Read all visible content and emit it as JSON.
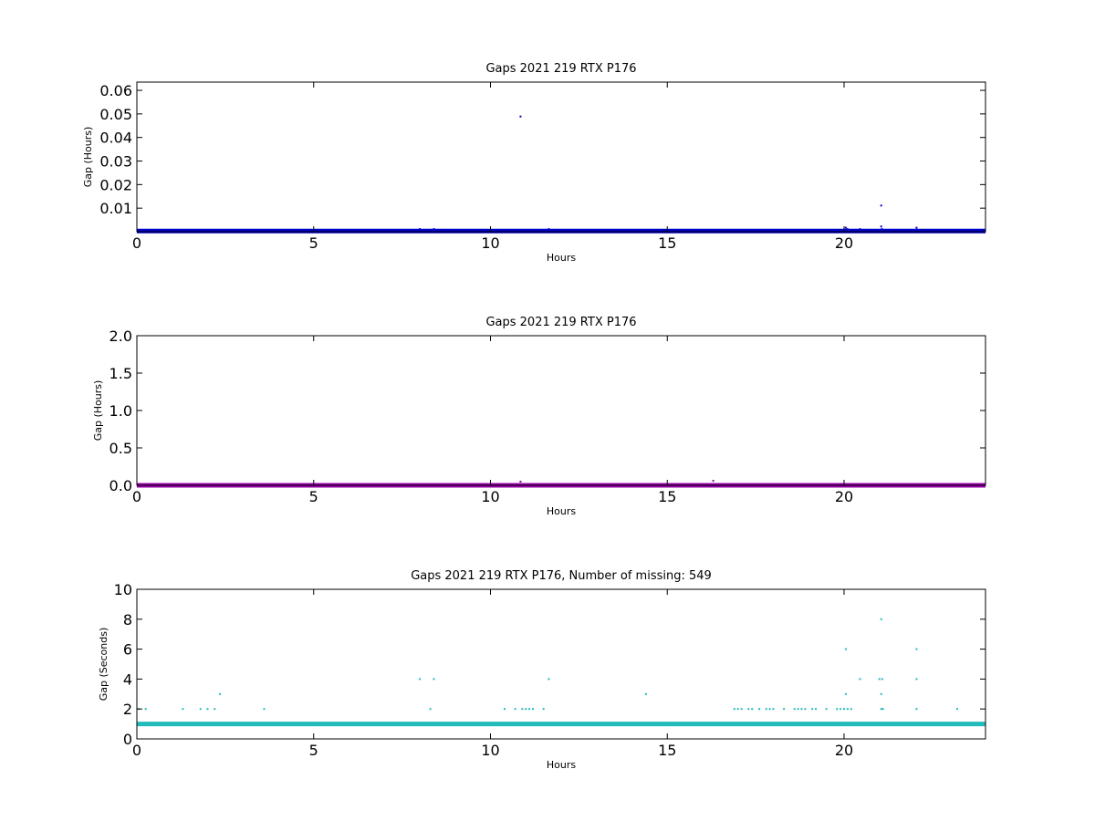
{
  "chart_data": [
    {
      "type": "scatter",
      "title": "Gaps 2021 219 RTX  P176",
      "xlabel": "Hours",
      "ylabel": "Gap (Hours)",
      "xlim": [
        0,
        24
      ],
      "ylim": [
        0,
        0.0635
      ],
      "xticks": [
        0,
        5,
        10,
        15,
        20
      ],
      "yticks": [
        0.01,
        0.02,
        0.03,
        0.04,
        0.05,
        0.06
      ],
      "ytick_labels": [
        "0.01",
        "0.02",
        "0.03",
        "0.04",
        "0.05",
        "0.06"
      ],
      "grid": false,
      "color": "#0000cc",
      "baseline": {
        "y": 0.00028,
        "x_start": 0,
        "x_end": 24
      },
      "points": [
        {
          "x": 8.0,
          "y": 0.0011
        },
        {
          "x": 8.4,
          "y": 0.0011
        },
        {
          "x": 10.85,
          "y": 0.0489
        },
        {
          "x": 11.65,
          "y": 0.0011
        },
        {
          "x": 20.05,
          "y": 0.0017
        },
        {
          "x": 20.1,
          "y": 0.0011
        },
        {
          "x": 20.45,
          "y": 0.0011
        },
        {
          "x": 21.05,
          "y": 0.0111
        },
        {
          "x": 21.05,
          "y": 0.0022
        },
        {
          "x": 21.07,
          "y": 0.0011
        },
        {
          "x": 22.05,
          "y": 0.0017
        }
      ]
    },
    {
      "type": "scatter",
      "title": "Gaps 2021 219 RTX  P176",
      "xlabel": "Hours",
      "ylabel": "Gap (Hours)",
      "xlim": [
        0,
        24
      ],
      "ylim": [
        0,
        2.0
      ],
      "xticks": [
        0,
        5,
        10,
        15,
        20
      ],
      "yticks": [
        0.0,
        0.5,
        1.0,
        1.5,
        2.0
      ],
      "ytick_labels": [
        "0.0",
        "0.5",
        "1.0",
        "1.5",
        "2.0"
      ],
      "grid": false,
      "color": "#9900aa",
      "baseline": {
        "y": 0.00028,
        "x_start": 0,
        "x_end": 24
      },
      "points": [
        {
          "x": 10.85,
          "y": 0.049
        },
        {
          "x": 16.3,
          "y": 0.06
        }
      ]
    },
    {
      "type": "scatter",
      "title": "Gaps 2021 219 RTX  P176, Number of missing: 549",
      "xlabel": "Hours",
      "ylabel": "Gap (Seconds)",
      "xlim": [
        0,
        24
      ],
      "ylim": [
        0,
        10
      ],
      "xticks": [
        0,
        5,
        10,
        15,
        20
      ],
      "yticks": [
        0,
        2,
        4,
        6,
        8,
        10
      ],
      "ytick_labels": [
        "0",
        "2",
        "4",
        "6",
        "8",
        "10"
      ],
      "grid": false,
      "color": "#22bbbb",
      "baseline": {
        "y": 1,
        "x_start": 0,
        "x_end": 24
      },
      "points": [
        {
          "x": 0.05,
          "y": 2
        },
        {
          "x": 0.25,
          "y": 2
        },
        {
          "x": 1.3,
          "y": 2
        },
        {
          "x": 1.8,
          "y": 2
        },
        {
          "x": 2.0,
          "y": 2
        },
        {
          "x": 2.2,
          "y": 2
        },
        {
          "x": 2.35,
          "y": 3
        },
        {
          "x": 3.6,
          "y": 2
        },
        {
          "x": 8.0,
          "y": 4
        },
        {
          "x": 8.3,
          "y": 2
        },
        {
          "x": 8.4,
          "y": 4
        },
        {
          "x": 10.4,
          "y": 2
        },
        {
          "x": 10.7,
          "y": 2
        },
        {
          "x": 10.9,
          "y": 2
        },
        {
          "x": 11.0,
          "y": 2
        },
        {
          "x": 11.1,
          "y": 2
        },
        {
          "x": 11.2,
          "y": 2
        },
        {
          "x": 11.5,
          "y": 2
        },
        {
          "x": 11.65,
          "y": 4
        },
        {
          "x": 14.4,
          "y": 3
        },
        {
          "x": 16.9,
          "y": 2
        },
        {
          "x": 17.0,
          "y": 2
        },
        {
          "x": 17.1,
          "y": 2
        },
        {
          "x": 17.3,
          "y": 2
        },
        {
          "x": 17.4,
          "y": 2
        },
        {
          "x": 17.6,
          "y": 2
        },
        {
          "x": 17.8,
          "y": 2
        },
        {
          "x": 17.9,
          "y": 2
        },
        {
          "x": 18.0,
          "y": 2
        },
        {
          "x": 18.3,
          "y": 2
        },
        {
          "x": 18.6,
          "y": 2
        },
        {
          "x": 18.7,
          "y": 2
        },
        {
          "x": 18.8,
          "y": 2
        },
        {
          "x": 18.9,
          "y": 2
        },
        {
          "x": 19.1,
          "y": 2
        },
        {
          "x": 19.2,
          "y": 2
        },
        {
          "x": 19.5,
          "y": 2
        },
        {
          "x": 19.8,
          "y": 2
        },
        {
          "x": 19.9,
          "y": 2
        },
        {
          "x": 20.0,
          "y": 2
        },
        {
          "x": 20.05,
          "y": 3
        },
        {
          "x": 20.05,
          "y": 6
        },
        {
          "x": 20.1,
          "y": 2
        },
        {
          "x": 20.2,
          "y": 2
        },
        {
          "x": 20.45,
          "y": 4
        },
        {
          "x": 21.0,
          "y": 4
        },
        {
          "x": 21.05,
          "y": 8
        },
        {
          "x": 21.05,
          "y": 3
        },
        {
          "x": 21.05,
          "y": 2
        },
        {
          "x": 21.08,
          "y": 4
        },
        {
          "x": 21.1,
          "y": 2
        },
        {
          "x": 22.05,
          "y": 6
        },
        {
          "x": 22.05,
          "y": 4
        },
        {
          "x": 22.05,
          "y": 2
        },
        {
          "x": 23.2,
          "y": 2
        }
      ]
    }
  ]
}
